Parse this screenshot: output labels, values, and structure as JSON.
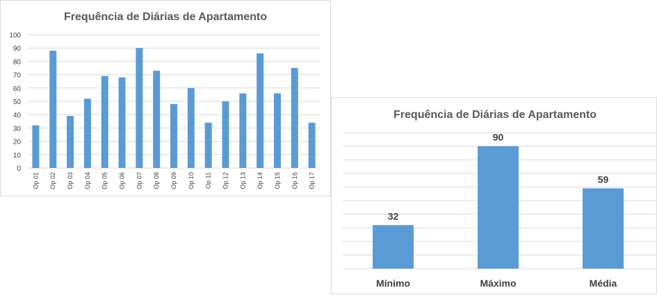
{
  "bar_color": "#5b9bd5",
  "grid_color": "#d9d9d9",
  "chart_data": [
    {
      "type": "bar",
      "title": "Frequência de Diárias de Apartamento",
      "categories": [
        "Op 01",
        "Op 02",
        "Op 03",
        "Op 04",
        "Op 05",
        "Op 06",
        "Op 07",
        "Op 08",
        "Op 09",
        "Op 10",
        "Op 11",
        "Op 12",
        "Op 13",
        "Op 14",
        "Op 15",
        "Op 16",
        "Op 17"
      ],
      "values": [
        32,
        88,
        39,
        52,
        69,
        68,
        90,
        73,
        48,
        60,
        34,
        50,
        56,
        86,
        56,
        75,
        34
      ],
      "ylim": [
        0,
        100
      ],
      "yticks": [
        0,
        10,
        20,
        30,
        40,
        50,
        60,
        70,
        80,
        90,
        100
      ],
      "grid": true,
      "legend": "none"
    },
    {
      "type": "bar",
      "title": "Frequência de Diárias de Apartamento",
      "categories": [
        "Mínimo",
        "Máximo",
        "Média"
      ],
      "values": [
        32,
        90,
        59
      ],
      "data_labels": [
        "32",
        "90",
        "59"
      ],
      "ylim": [
        0,
        100
      ],
      "grid": true,
      "legend": "none"
    }
  ]
}
